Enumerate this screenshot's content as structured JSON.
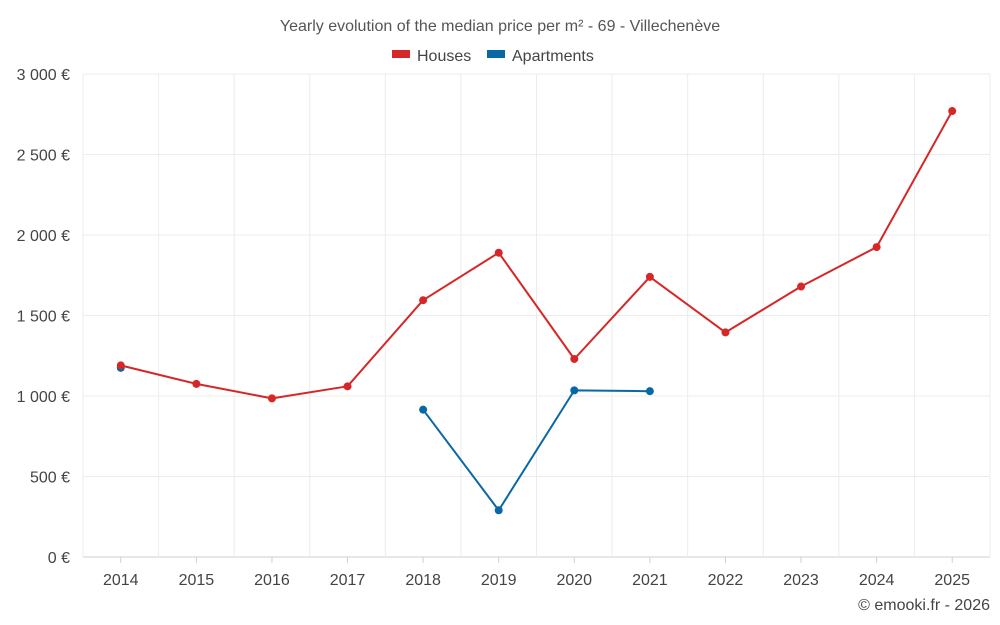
{
  "chart_data": {
    "type": "line",
    "title": "Yearly evolution of the median price per m² - 69 - Villechenève",
    "categories": [
      "2014",
      "2015",
      "2016",
      "2017",
      "2018",
      "2019",
      "2020",
      "2021",
      "2022",
      "2023",
      "2024",
      "2025"
    ],
    "series": [
      {
        "name": "Houses",
        "color": "#d62728",
        "values": [
          1190,
          1075,
          985,
          1060,
          1595,
          1890,
          1230,
          1740,
          1395,
          1680,
          1925,
          2770
        ]
      },
      {
        "name": "Apartments",
        "color": "#0868a6",
        "values": [
          1175,
          null,
          null,
          null,
          915,
          290,
          1035,
          1030,
          null,
          null,
          null,
          null
        ]
      }
    ],
    "ylim": [
      0,
      3000
    ],
    "yticks": [
      0,
      500,
      1000,
      1500,
      2000,
      2500,
      3000
    ],
    "ytick_labels": [
      "0 €",
      "500 €",
      "1 000 €",
      "1 500 €",
      "2 000 €",
      "2 500 €",
      "3 000 €"
    ],
    "xlabel": "",
    "ylabel": "",
    "grid": true,
    "legend_position": "top-center"
  },
  "footer": "© emooki.fr - 2026"
}
